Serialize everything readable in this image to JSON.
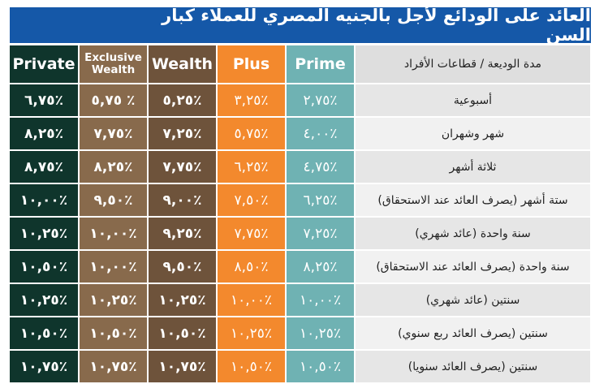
{
  "title": "العائد على الودائع لأجل بالجنيه المصري للعملاء كبار السن",
  "columns": {
    "private": "Private",
    "exclusive": "Exclusive Wealth",
    "wealth": "Wealth",
    "plus": "Plus",
    "prime": "Prime",
    "period": "مدة الوديعة / قطاعات الأفراد"
  },
  "rows": [
    {
      "period": "أسبوعية",
      "private": "٪٦,٧٥",
      "exclusive": "٪ ٥,٧٥",
      "wealth": "٪٥,٢٥",
      "plus": "٪٣,٢٥",
      "prime": "٪٢,٧٥"
    },
    {
      "period": "شهر وشهران",
      "private": "٪٨,٢٥",
      "exclusive": "٪٧,٧٥",
      "wealth": "٪٧,٢٥",
      "plus": "٪٥,٧٥",
      "prime": "٪٤,٠٠"
    },
    {
      "period": "ثلاثة أشهر",
      "private": "٪٨,٧٥",
      "exclusive": "٪٨,٢٥",
      "wealth": "٪٧,٧٥",
      "plus": "٪٦,٢٥",
      "prime": "٪٤,٧٥"
    },
    {
      "period": "ستة أشهر (يصرف العائد عند الاستحقاق)",
      "private": "٪١٠,٠٠",
      "exclusive": "٪٩,٥٠",
      "wealth": "٪٩,٠٠",
      "plus": "٪٧,٥٠",
      "prime": "٪٦,٢٥"
    },
    {
      "period": "سنة واحدة (عائد شهري)",
      "private": "٪١٠,٢٥",
      "exclusive": "٪١٠,٠٠",
      "wealth": "٪٩,٢٥",
      "plus": "٪٧,٧٥",
      "prime": "٪٧,٢٥"
    },
    {
      "period": "سنة واحدة (يصرف العائد عند الاستحقاق)",
      "private": "٪١٠,٥٠",
      "exclusive": "٪١٠,٠٠",
      "wealth": "٪٩,٥٠",
      "plus": "٪٨,٥٠",
      "prime": "٪٨,٢٥"
    },
    {
      "period": "سنتين (عائد شهري)",
      "private": "٪١٠,٢٥",
      "exclusive": "٪١٠,٢٥",
      "wealth": "٪١٠,٢٥",
      "plus": "٪١٠,٠٠",
      "prime": "٪١٠,٠٠"
    },
    {
      "period": "سنتين (يصرف العائد ربع سنوي)",
      "private": "٪١٠,٥٠",
      "exclusive": "٪١٠,٥٠",
      "wealth": "٪١٠,٥٠",
      "plus": "٪١٠,٢٥",
      "prime": "٪١٠,٢٥"
    },
    {
      "period": "سنتين (يصرف العائد سنويا)",
      "private": "٪١٠,٧٥",
      "exclusive": "٪١٠,٧٥",
      "wealth": "٪١٠,٧٥",
      "plus": "٪١٠,٥٠",
      "prime": "٪١٠,٥٠"
    }
  ]
}
